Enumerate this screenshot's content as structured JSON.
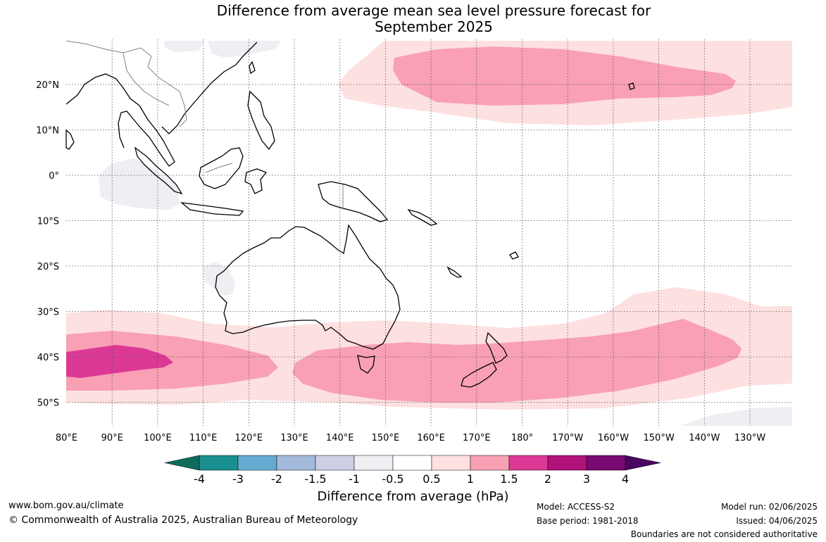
{
  "title_line1": "Difference from average mean sea level pressure forecast for",
  "title_line2": "September 2025",
  "lon_ticks": [
    "80°E",
    "90°E",
    "100°E",
    "110°E",
    "120°E",
    "130°E",
    "140°E",
    "150°E",
    "160°E",
    "170°E",
    "180°",
    "170°W",
    "160°W",
    "150°W",
    "140°W",
    "130°W"
  ],
  "lat_ticks": [
    "20°N",
    "10°N",
    "0°",
    "10°S",
    "20°S",
    "30°S",
    "40°S",
    "50°S"
  ],
  "colorbar": {
    "title": "Difference from average (hPa)",
    "labels": [
      "-4",
      "-3",
      "-2",
      "-1.5",
      "-1",
      "-0.5",
      "0.5",
      "1",
      "1.5",
      "2",
      "3",
      "4"
    ],
    "colors": {
      "under": "#0f6b5c",
      "bins": [
        "#1a8f90",
        "#66aad1",
        "#a3badb",
        "#cdd0e5",
        "#f0edf3",
        "#ffffff",
        "#fde0e0",
        "#f9a0b5",
        "#dc3896",
        "#b0127a",
        "#7a0a73"
      ],
      "over": "#4a0560"
    }
  },
  "region_colors": {
    "pos_light": "#fde0e0",
    "pos_medium": "#f9a0b5",
    "pos_strong": "#dc3896",
    "neg_light": "#f0edf3",
    "coast": "#000000",
    "border": "#808080"
  },
  "footer": {
    "url": "www.bom.gov.au/climate",
    "copyright": "© Commonwealth of Australia 2025, Australian Bureau of Meteorology",
    "model": "Model: ACCESS-S2",
    "base_period": "Base period: 1981-2018",
    "model_run": "Model run: 02/06/2025",
    "issued": "Issued: 04/06/2025",
    "boundaries_note": "Boundaries are not considered authoritative"
  }
}
